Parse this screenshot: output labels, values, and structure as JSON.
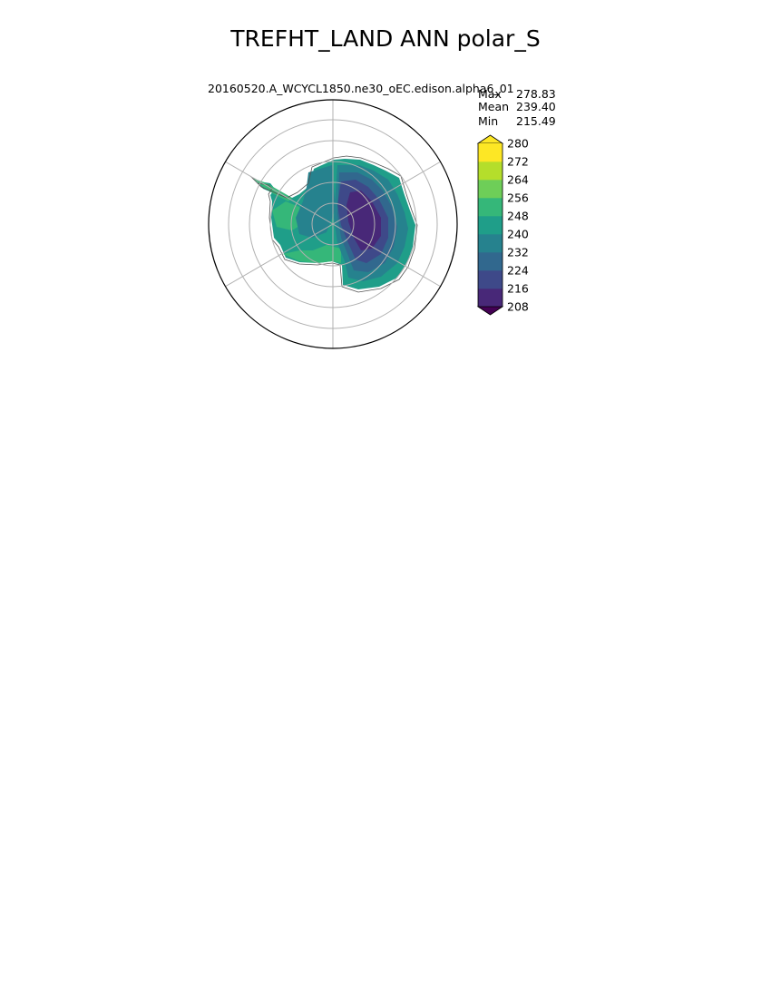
{
  "figure": {
    "title": "TREFHT_LAND ANN polar_S",
    "subtitle": "20160520.A_WCYCL1850.ne30_oEC.edison.alpha6_01"
  },
  "stats": [
    {
      "label": "Max",
      "value": "278.83"
    },
    {
      "label": "Mean",
      "value": "239.40"
    },
    {
      "label": "Min",
      "value": "215.49"
    }
  ],
  "chart_data": {
    "type": "heatmap",
    "title": "TREFHT_LAND ANN polar_S",
    "subtitle": "20160520.A_WCYCL1850.ne30_oEC.edison.alpha6_01",
    "projection": "south polar stereographic",
    "region": "Antarctica",
    "grid": true,
    "colorbar": {
      "levels": [
        208,
        216,
        224,
        232,
        240,
        248,
        256,
        264,
        272,
        280
      ],
      "tick_labels": [
        "208",
        "216",
        "224",
        "232",
        "240",
        "248",
        "256",
        "264",
        "272",
        "280"
      ],
      "colors": [
        "#440154",
        "#482878",
        "#3e4989",
        "#31688e",
        "#26828e",
        "#1f9e89",
        "#35b779",
        "#6ece58",
        "#b5de2b",
        "#fde725"
      ],
      "extend": "both",
      "placement": "right"
    },
    "stats": {
      "max": 278.83,
      "mean": 239.4,
      "min": 215.49
    }
  },
  "colors": {
    "v208": "#440154",
    "v216": "#482878",
    "v224": "#3e4989",
    "v232": "#31688e",
    "v240": "#26828e",
    "v248": "#1f9e89",
    "v256": "#35b779",
    "v264": "#6ece58",
    "v272": "#b5de2b",
    "v280": "#fde725"
  }
}
